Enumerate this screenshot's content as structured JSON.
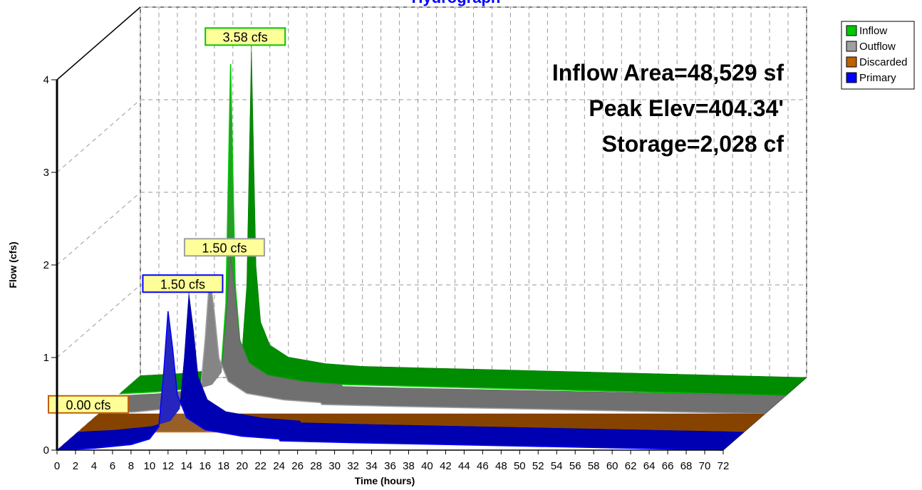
{
  "chart_data": {
    "type": "area3d",
    "title": "Hydrograph",
    "xlabel": "Time  (hours)",
    "ylabel": "Flow  (cfs)",
    "annotations": [
      "Inflow Area=48,529 sf",
      "Peak Elev=404.34'",
      "Storage=2,028 cf"
    ],
    "x": [
      0,
      4,
      8,
      10,
      11,
      11.5,
      12,
      12.5,
      13,
      14,
      16,
      20,
      24,
      24.1,
      32,
      72
    ],
    "series": [
      {
        "name": "Inflow",
        "color": "#00c800",
        "values": [
          0.02,
          0.04,
          0.08,
          0.15,
          0.3,
          1.0,
          3.58,
          1.2,
          0.6,
          0.35,
          0.22,
          0.15,
          0.12,
          0.12,
          0.1,
          0
        ],
        "peak": 3.58,
        "peak_label": "3.58 cfs"
      },
      {
        "name": "Outflow",
        "color": "#a0a0a0",
        "values": [
          0,
          0.02,
          0.06,
          0.12,
          0.25,
          0.8,
          1.5,
          1.1,
          0.6,
          0.35,
          0.22,
          0.15,
          0.12,
          0.1,
          0.08,
          0
        ],
        "peak": 1.5,
        "peak_label": "1.50 cfs"
      },
      {
        "name": "Discarded",
        "color": "#c06000",
        "values": [
          0,
          0,
          0,
          0,
          0,
          0,
          0,
          0,
          0,
          0,
          0,
          0,
          0,
          0,
          0,
          0
        ],
        "peak": 0,
        "peak_label": "0.00 cfs"
      },
      {
        "name": "Primary",
        "color": "#0000ff",
        "values": [
          0,
          0.02,
          0.06,
          0.12,
          0.25,
          0.8,
          1.5,
          1.1,
          0.6,
          0.35,
          0.22,
          0.15,
          0.12,
          0.1,
          0.08,
          0
        ],
        "peak": 1.5,
        "peak_label": "1.50 cfs"
      }
    ],
    "xlim": [
      0,
      72
    ],
    "xticks": [
      0,
      2,
      4,
      6,
      8,
      10,
      12,
      14,
      16,
      18,
      20,
      22,
      24,
      26,
      28,
      30,
      32,
      34,
      36,
      38,
      40,
      42,
      44,
      46,
      48,
      50,
      52,
      54,
      56,
      58,
      60,
      62,
      64,
      66,
      68,
      70,
      72
    ],
    "ylim": [
      0,
      4
    ],
    "yticks": [
      0,
      1,
      2,
      3,
      4
    ],
    "grid": true,
    "legend": "top-right"
  }
}
